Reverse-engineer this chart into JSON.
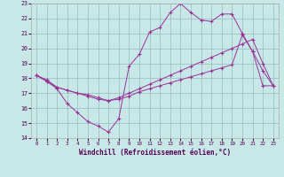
{
  "xlabel": "Windchill (Refroidissement éolien,°C)",
  "background_color": "#c8e8e8",
  "grid_color": "#99bbbb",
  "line_color": "#993399",
  "xlim": [
    -0.5,
    23.5
  ],
  "ylim": [
    14,
    23
  ],
  "yticks": [
    14,
    15,
    16,
    17,
    18,
    19,
    20,
    21,
    22,
    23
  ],
  "xticks": [
    0,
    1,
    2,
    3,
    4,
    5,
    6,
    7,
    8,
    9,
    10,
    11,
    12,
    13,
    14,
    15,
    16,
    17,
    18,
    19,
    20,
    21,
    22,
    23
  ],
  "xtick_labels": [
    "0",
    "1",
    "2",
    "3",
    "4",
    "5",
    "6",
    "7",
    "8",
    "9",
    "10",
    "11",
    "12",
    "13",
    "14",
    "15",
    "16",
    "17",
    "18",
    "19",
    "20",
    "21",
    "22",
    "23"
  ],
  "series": {
    "line1_x": [
      0,
      1,
      2,
      3,
      4,
      5,
      6,
      7,
      8,
      9,
      10,
      11,
      12,
      13,
      14,
      15,
      16,
      17,
      18,
      19,
      20,
      21,
      22,
      23
    ],
    "line1_y": [
      18.2,
      17.8,
      17.3,
      16.3,
      15.7,
      15.1,
      14.8,
      14.4,
      15.3,
      18.8,
      19.6,
      21.1,
      21.4,
      22.4,
      23.0,
      22.4,
      21.9,
      21.8,
      22.3,
      22.3,
      21.0,
      19.8,
      18.5,
      17.5
    ],
    "line2_x": [
      0,
      1,
      2,
      3,
      4,
      5,
      6,
      7,
      8,
      9,
      10,
      11,
      12,
      13,
      14,
      15,
      16,
      17,
      18,
      19,
      20,
      21,
      22,
      23
    ],
    "line2_y": [
      18.2,
      17.8,
      17.4,
      17.2,
      17.0,
      16.8,
      16.6,
      16.5,
      16.6,
      16.8,
      17.1,
      17.3,
      17.5,
      17.7,
      17.9,
      18.1,
      18.3,
      18.5,
      18.7,
      18.9,
      20.9,
      19.8,
      17.5,
      17.5
    ],
    "line3_x": [
      0,
      1,
      2,
      3,
      4,
      5,
      6,
      7,
      8,
      9,
      10,
      11,
      12,
      13,
      14,
      15,
      16,
      17,
      18,
      19,
      20,
      21,
      22,
      23
    ],
    "line3_y": [
      18.2,
      17.9,
      17.4,
      17.2,
      17.0,
      16.9,
      16.7,
      16.5,
      16.7,
      17.0,
      17.3,
      17.6,
      17.9,
      18.2,
      18.5,
      18.8,
      19.1,
      19.4,
      19.7,
      20.0,
      20.3,
      20.6,
      19.0,
      17.5
    ]
  }
}
